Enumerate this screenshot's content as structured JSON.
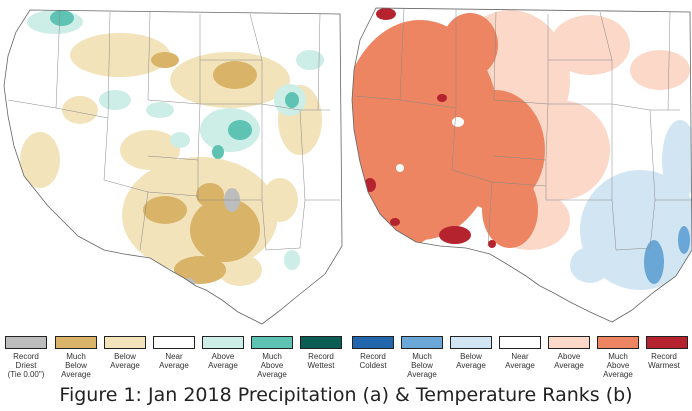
{
  "figure": {
    "caption": "Figure 1: Jan 2018 Precipitation (a) & Temperature Ranks (b)"
  },
  "colors": {
    "record_driest": "#bdbdbd",
    "much_below_average_precip": "#d8b368",
    "below_average_precip": "#f3e3bb",
    "near_average": "#ffffff",
    "above_average_precip": "#cdeee6",
    "much_above_average_precip": "#5fc3b4",
    "record_wettest": "#0c5e54",
    "record_coldest": "#2166ac",
    "much_below_average_temp": "#6aa7d6",
    "below_average_temp": "#d2e5f3",
    "above_average_temp": "#fbd8c8",
    "much_above_average_temp": "#ee8562",
    "record_warmest": "#b5232f"
  },
  "legend": {
    "precipitation": [
      {
        "key": "record-driest",
        "line1": "Record",
        "line2": "Driest",
        "line3": "(Tie 0.00\")",
        "color": "#bdbdbd"
      },
      {
        "key": "much-below-average",
        "line1": "Much",
        "line2": "Below",
        "line3": "Average",
        "color": "#d8b368"
      },
      {
        "key": "below-average",
        "line1": "Below",
        "line2": "Average",
        "line3": "",
        "color": "#f3e3bb"
      },
      {
        "key": "near-average",
        "line1": "Near",
        "line2": "Average",
        "line3": "",
        "color": "#ffffff"
      },
      {
        "key": "above-average",
        "line1": "Above",
        "line2": "Average",
        "line3": "",
        "color": "#cdeee6"
      },
      {
        "key": "much-above-average",
        "line1": "Much",
        "line2": "Above",
        "line3": "Average",
        "color": "#5fc3b4"
      },
      {
        "key": "record-wettest",
        "line1": "Record",
        "line2": "Wettest",
        "line3": "",
        "color": "#0c5e54"
      }
    ],
    "temperature": [
      {
        "key": "record-coldest",
        "line1": "Record",
        "line2": "Coldest",
        "line3": "",
        "color": "#2166ac"
      },
      {
        "key": "much-below-average",
        "line1": "Much",
        "line2": "Below",
        "line3": "Average",
        "color": "#6aa7d6"
      },
      {
        "key": "below-average",
        "line1": "Below",
        "line2": "Average",
        "line3": "",
        "color": "#d2e5f3"
      },
      {
        "key": "near-average",
        "line1": "Near",
        "line2": "Average",
        "line3": "",
        "color": "#ffffff"
      },
      {
        "key": "above-average",
        "line1": "Above",
        "line2": "Average",
        "line3": "",
        "color": "#fbd8c8"
      },
      {
        "key": "much-above-average",
        "line1": "Much",
        "line2": "Above",
        "line3": "Average",
        "color": "#ee8562"
      },
      {
        "key": "record-warmest",
        "line1": "Record",
        "line2": "Warmest",
        "line3": "",
        "color": "#b5232f"
      }
    ]
  }
}
